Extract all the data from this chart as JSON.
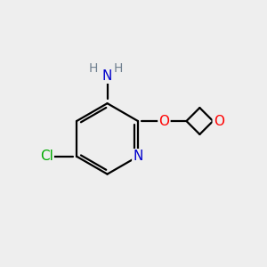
{
  "bg_color": "#eeeeee",
  "bond_color": "#000000",
  "bond_width": 1.6,
  "atom_colors": {
    "N": "#0000cc",
    "O": "#ff0000",
    "Cl": "#00aa00",
    "H": "#708090",
    "C": "#000000"
  },
  "font_size_atom": 11,
  "font_size_h": 10,
  "font_size_cl": 11
}
